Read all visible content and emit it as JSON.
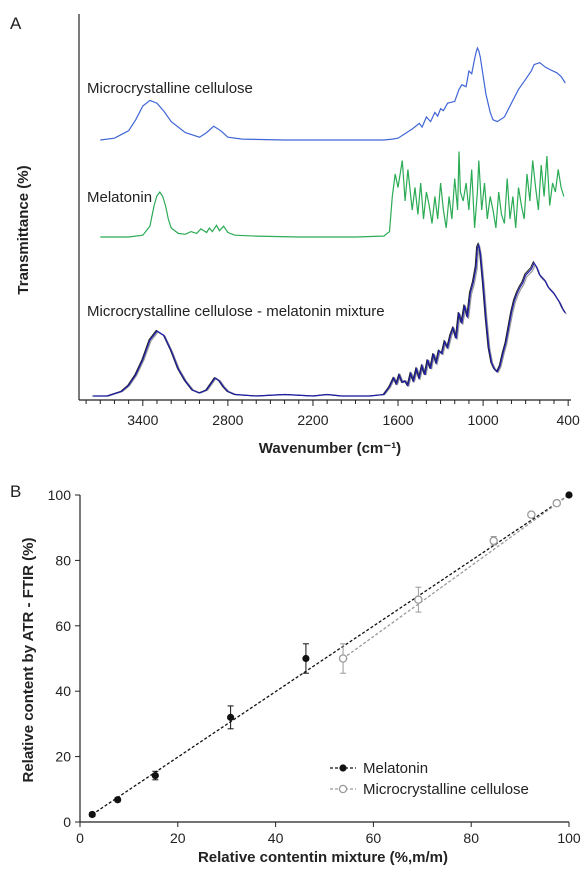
{
  "chart_data": [
    {
      "panel_label": "A",
      "type": "line",
      "xlabel": "Wavenumber (cm⁻¹)",
      "ylabel": "Transmittance (%)",
      "x_axis": {
        "reversed": true,
        "xlim": [
          3850,
          380
        ],
        "ticks": [
          3400,
          2800,
          2200,
          1600,
          1000,
          400
        ]
      },
      "y_axis": {
        "ticks_shown": false
      },
      "grid": false,
      "legend": "none",
      "series": [
        {
          "name": "Microcrystalline cellulose",
          "color": "#3f66d6",
          "x": [
            3700,
            3600,
            3500,
            3450,
            3400,
            3350,
            3300,
            3250,
            3200,
            3100,
            3000,
            2950,
            2900,
            2850,
            2800,
            2700,
            2400,
            2000,
            1800,
            1700,
            1640,
            1600,
            1500,
            1450,
            1430,
            1400,
            1370,
            1340,
            1320,
            1300,
            1280,
            1250,
            1200,
            1170,
            1150,
            1120,
            1100,
            1080,
            1060,
            1050,
            1040,
            1030,
            1020,
            1000,
            980,
            950,
            930,
            900,
            850,
            800,
            750,
            700,
            660,
            640,
            600,
            560,
            520,
            480,
            450,
            420
          ],
          "y": [
            0.0,
            0.02,
            0.1,
            0.22,
            0.37,
            0.43,
            0.4,
            0.31,
            0.2,
            0.08,
            0.03,
            0.08,
            0.15,
            0.1,
            0.03,
            0.01,
            0.0,
            0.0,
            0.0,
            0.0,
            0.01,
            0.02,
            0.12,
            0.18,
            0.14,
            0.25,
            0.2,
            0.3,
            0.26,
            0.34,
            0.32,
            0.4,
            0.42,
            0.55,
            0.6,
            0.58,
            0.75,
            0.72,
            0.88,
            0.95,
            1.0,
            0.97,
            0.9,
            0.7,
            0.5,
            0.3,
            0.22,
            0.2,
            0.25,
            0.4,
            0.55,
            0.66,
            0.75,
            0.82,
            0.84,
            0.79,
            0.76,
            0.73,
            0.69,
            0.62
          ]
        },
        {
          "name": "Melatonin",
          "color": "#2bab55",
          "x": [
            3700,
            3500,
            3400,
            3350,
            3320,
            3300,
            3280,
            3260,
            3240,
            3220,
            3200,
            3150,
            3100,
            3060,
            3020,
            2990,
            2950,
            2930,
            2910,
            2880,
            2860,
            2830,
            2800,
            2750,
            2600,
            2300,
            1900,
            1700,
            1660,
            1640,
            1620,
            1600,
            1570,
            1550,
            1530,
            1500,
            1480,
            1460,
            1440,
            1420,
            1400,
            1380,
            1360,
            1340,
            1320,
            1300,
            1280,
            1260,
            1240,
            1220,
            1200,
            1180,
            1170,
            1160,
            1140,
            1120,
            1100,
            1080,
            1060,
            1040,
            1030,
            1010,
            990,
            970,
            950,
            930,
            910,
            890,
            870,
            850,
            830,
            810,
            790,
            770,
            750,
            730,
            710,
            690,
            670,
            650,
            630,
            610,
            590,
            570,
            550,
            530,
            510,
            490,
            470,
            450,
            430
          ],
          "y": [
            0.0,
            0.0,
            0.02,
            0.12,
            0.35,
            0.46,
            0.5,
            0.45,
            0.35,
            0.2,
            0.1,
            0.04,
            0.03,
            0.06,
            0.04,
            0.09,
            0.05,
            0.1,
            0.06,
            0.13,
            0.07,
            0.12,
            0.05,
            0.02,
            0.01,
            0.0,
            0.0,
            0.01,
            0.06,
            0.45,
            0.7,
            0.55,
            0.85,
            0.4,
            0.75,
            0.3,
            0.55,
            0.25,
            0.6,
            0.2,
            0.5,
            0.35,
            0.15,
            0.45,
            0.2,
            0.6,
            0.3,
            0.1,
            0.45,
            0.2,
            0.65,
            0.3,
            0.95,
            0.5,
            0.4,
            0.6,
            0.3,
            0.75,
            0.1,
            0.5,
            0.85,
            0.3,
            0.6,
            0.2,
            0.45,
            0.3,
            0.1,
            0.5,
            0.25,
            0.15,
            0.65,
            0.2,
            0.45,
            0.1,
            0.55,
            0.35,
            0.2,
            0.7,
            0.4,
            0.85,
            0.55,
            0.3,
            0.8,
            0.45,
            0.9,
            0.35,
            0.6,
            0.5,
            0.75,
            0.55,
            0.45
          ]
        },
        {
          "name": "Microcrystalline cellulose - melatonin mixture",
          "color": "#1f1fa8",
          "x": [
            3750,
            3650,
            3550,
            3500,
            3450,
            3400,
            3350,
            3300,
            3250,
            3200,
            3150,
            3100,
            3050,
            3000,
            2950,
            2920,
            2890,
            2860,
            2830,
            2800,
            2750,
            2600,
            2400,
            2200,
            2100,
            2000,
            1800,
            1700,
            1660,
            1630,
            1610,
            1590,
            1570,
            1550,
            1530,
            1510,
            1490,
            1470,
            1450,
            1430,
            1410,
            1390,
            1370,
            1350,
            1330,
            1310,
            1290,
            1270,
            1250,
            1230,
            1210,
            1190,
            1170,
            1150,
            1130,
            1110,
            1090,
            1070,
            1050,
            1040,
            1030,
            1020,
            1000,
            980,
            960,
            940,
            920,
            900,
            880,
            860,
            840,
            820,
            800,
            780,
            760,
            740,
            720,
            700,
            680,
            660,
            640,
            620,
            600,
            580,
            560,
            540,
            520,
            500,
            480,
            460,
            440,
            420
          ],
          "y": [
            0.0,
            0.0,
            0.03,
            0.07,
            0.14,
            0.24,
            0.37,
            0.43,
            0.4,
            0.3,
            0.18,
            0.1,
            0.04,
            0.02,
            0.04,
            0.08,
            0.12,
            0.1,
            0.06,
            0.03,
            0.01,
            0.0,
            0.01,
            0.0,
            0.01,
            0.0,
            0.0,
            0.01,
            0.06,
            0.12,
            0.08,
            0.14,
            0.09,
            0.1,
            0.07,
            0.15,
            0.1,
            0.18,
            0.12,
            0.2,
            0.14,
            0.24,
            0.18,
            0.28,
            0.22,
            0.3,
            0.28,
            0.36,
            0.32,
            0.4,
            0.45,
            0.38,
            0.55,
            0.48,
            0.6,
            0.52,
            0.68,
            0.75,
            0.85,
            0.98,
            1.0,
            0.95,
            0.75,
            0.52,
            0.32,
            0.22,
            0.18,
            0.16,
            0.2,
            0.28,
            0.35,
            0.45,
            0.55,
            0.63,
            0.68,
            0.72,
            0.75,
            0.8,
            0.82,
            0.84,
            0.88,
            0.85,
            0.8,
            0.78,
            0.76,
            0.72,
            0.7,
            0.68,
            0.65,
            0.62,
            0.58,
            0.55
          ]
        }
      ]
    },
    {
      "panel_label": "B",
      "type": "scatter",
      "xlabel": "Relative contentin mixture (%,m/m)",
      "ylabel": "Relative content by ATR - FTIR (%)",
      "xlim": [
        0,
        100
      ],
      "ylim": [
        0,
        100
      ],
      "x_ticks": [
        0,
        20,
        40,
        60,
        80,
        100
      ],
      "y_ticks": [
        0,
        20,
        40,
        60,
        80,
        100
      ],
      "grid": false,
      "legend": "bottom-right",
      "series": [
        {
          "name": "Melatonin",
          "color": "#111111",
          "marker": "filled-circle",
          "x": [
            2.5,
            7.7,
            15.4,
            30.8,
            46.2,
            100
          ],
          "y": [
            2.3,
            6.8,
            14.2,
            32.0,
            50.0,
            100
          ],
          "error": [
            0.6,
            0.6,
            1.3,
            3.5,
            4.5,
            0.5
          ],
          "trendline": {
            "style": "dashed",
            "x": [
              2.5,
              100
            ],
            "y": [
              2.3,
              100
            ]
          }
        },
        {
          "name": "Microcrystalline cellulose",
          "color": "#9a9a9a",
          "marker": "open-circle",
          "x": [
            53.8,
            69.2,
            84.6,
            92.3,
            97.5
          ],
          "y": [
            50.0,
            68.0,
            86.0,
            94.0,
            97.5
          ],
          "error": [
            4.5,
            3.8,
            1.3,
            0.5,
            0.4
          ],
          "trendline": {
            "style": "dashed",
            "x": [
              53.8,
              100
            ],
            "y": [
              50.0,
              100
            ]
          }
        }
      ]
    }
  ]
}
